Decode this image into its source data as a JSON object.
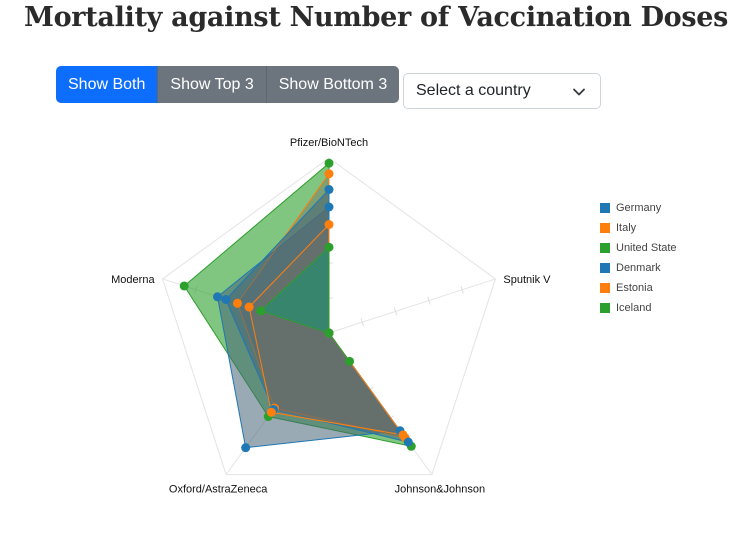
{
  "page": {
    "title": "Mortality against Number of Vaccination Doses"
  },
  "controls": {
    "buttons": [
      {
        "label": "Show Both",
        "active": true
      },
      {
        "label": "Show Top 3",
        "active": false
      },
      {
        "label": "Show Bottom 3",
        "active": false
      }
    ],
    "select_placeholder": "Select a country",
    "chevron_icon": "chevron-down-icon"
  },
  "chart_data": {
    "type": "radar",
    "axes": [
      "Pfizer/BioNTech",
      "Sputnik V",
      "Johnson&Johnson",
      "Oxford/AstraZeneca",
      "Moderna"
    ],
    "range": [
      0,
      1
    ],
    "legend_position": "right",
    "series": [
      {
        "name": "Germany",
        "color": "#1f77b4",
        "values": [
          0.72,
          0.0,
          0.69,
          0.81,
          0.67
        ]
      },
      {
        "name": "Italy",
        "color": "#ff7f0e",
        "values": [
          0.62,
          0.0,
          0.72,
          0.56,
          0.48
        ]
      },
      {
        "name": "United State",
        "color": "#2ca02c",
        "values": [
          0.97,
          0.0,
          0.8,
          0.59,
          0.87
        ]
      },
      {
        "name": "Denmark",
        "color": "#1f77b4",
        "values": [
          0.82,
          0.0,
          0.77,
          0.54,
          0.62
        ]
      },
      {
        "name": "Estonia",
        "color": "#ff7f0e",
        "values": [
          0.91,
          0.0,
          0.74,
          0.53,
          0.55
        ]
      },
      {
        "name": "Iceland",
        "color": "#2ca02c",
        "values": [
          0.49,
          0.0,
          0.2,
          0.0,
          0.41
        ]
      }
    ]
  }
}
